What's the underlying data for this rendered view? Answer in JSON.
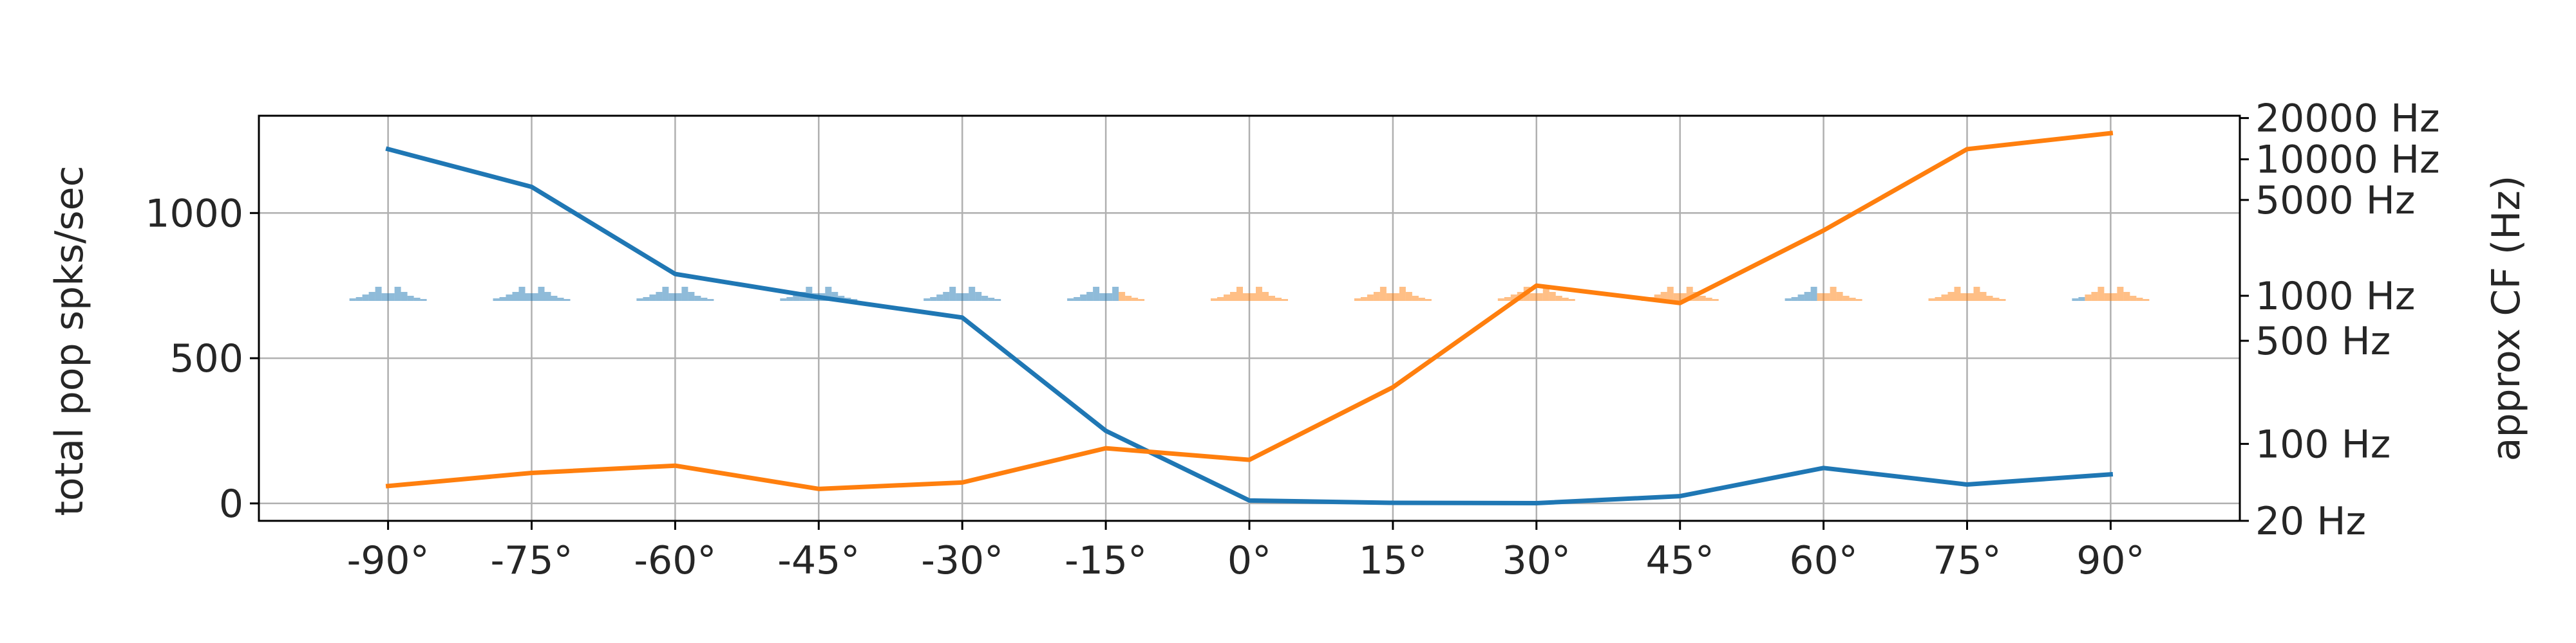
{
  "chart_data": {
    "type": "line",
    "x": [
      -90,
      -75,
      -60,
      -45,
      -30,
      -15,
      0,
      15,
      30,
      45,
      60,
      75,
      90
    ],
    "xtick_labels": [
      "-90°",
      "-75°",
      "-60°",
      "-45°",
      "-30°",
      "-15°",
      "0°",
      "15°",
      "30°",
      "45°",
      "60°",
      "75°",
      "90°"
    ],
    "xlim": [
      -103.5,
      103.5
    ],
    "ylabel": "total pop spks/sec",
    "ylim": [
      -60,
      1335
    ],
    "yticks": [
      0,
      500,
      1000
    ],
    "y2label": "approx CF (Hz)",
    "y2_scale": "log (cochlear frequency map)",
    "y2tick_labels": [
      "20 Hz",
      "100 Hz",
      "500 Hz",
      "1000 Hz",
      "5000 Hz",
      "10000 Hz",
      "20000 Hz"
    ],
    "y2tick_positions": [
      -60,
      205,
      560,
      715,
      1045,
      1185,
      1327
    ],
    "grid": true,
    "series": [
      {
        "color": "#1f77b4",
        "values": [
          1220,
          1090,
          790,
          710,
          640,
          250,
          10,
          2,
          1,
          25,
          122,
          65,
          100
        ]
      },
      {
        "color": "#ff7f0e",
        "values": [
          60,
          105,
          130,
          50,
          72,
          190,
          150,
          400,
          750,
          690,
          940,
          1220,
          1275
        ]
      }
    ],
    "histograms": {
      "baseline": 715,
      "bin_count": 6,
      "colors": [
        "#1f77b4",
        "#ff7f0e"
      ],
      "opacity": 0.5,
      "blue_fraction": [
        1,
        1,
        1,
        1,
        1,
        0.6,
        0,
        0,
        0,
        0,
        0.35,
        0,
        0.1
      ]
    }
  }
}
